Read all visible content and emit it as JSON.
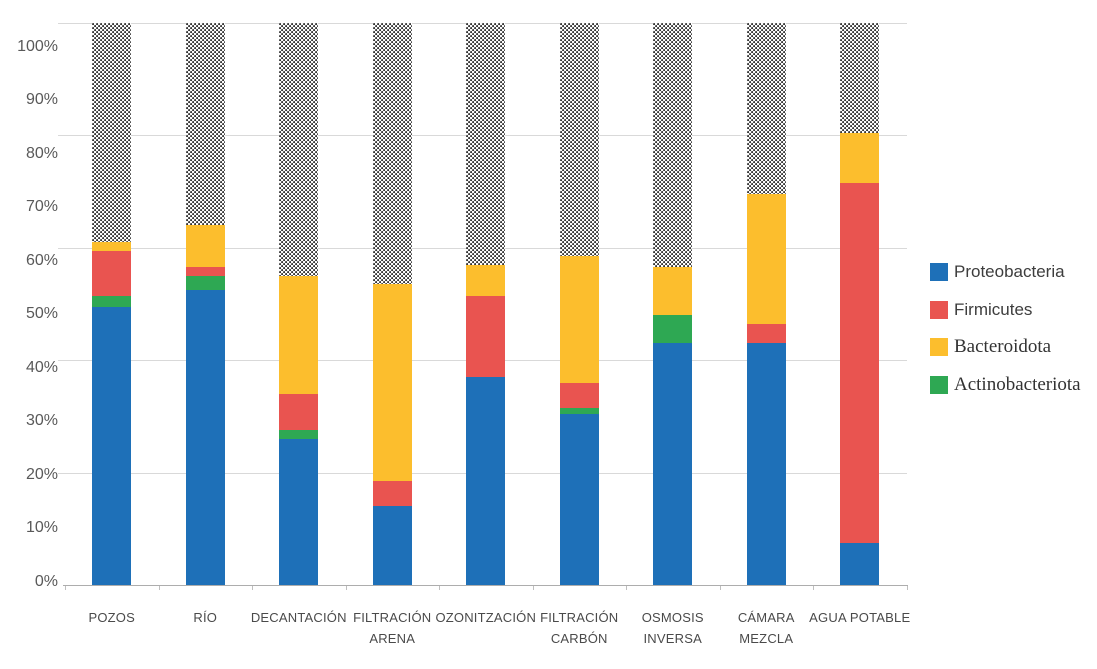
{
  "chart_data": {
    "type": "bar",
    "stacked": true,
    "title": "",
    "value_unit": "%",
    "categories": [
      "POZOS",
      "RÍO",
      "DECANTACIÓN",
      "FILTRACIÓN ARENA",
      "OZONITZACIÓN",
      "FILTRACIÓN CARBÓN",
      "OSMOSIS INVERSA",
      "CÁMARA MEZCLA",
      "AGUA POTABLE"
    ],
    "category_label_lines": [
      [
        "POZOS"
      ],
      [
        "RÍO"
      ],
      [
        "DECANTACIÓN"
      ],
      [
        "FILTRACIÓN",
        "ARENA"
      ],
      [
        "OZONITZACIÓN"
      ],
      [
        "FILTRACIÓN",
        "CARBÓN"
      ],
      [
        "OSMOSIS",
        "INVERSA"
      ],
      [
        "CÁMARA",
        "MEZCLA"
      ],
      [
        "AGUA POTABLE"
      ]
    ],
    "stack_order": "bottom to top",
    "series": [
      {
        "name": "Proteobacteria",
        "color": "#1E70B8",
        "values": [
          49.5,
          52.5,
          26,
          14,
          37,
          30.5,
          43,
          43,
          7.5
        ]
      },
      {
        "name": "Actinobacteriota",
        "color": "#2EA853",
        "values": [
          2,
          2.5,
          1.5,
          0,
          0,
          1,
          5,
          0,
          0
        ]
      },
      {
        "name": "Firmicutes",
        "color": "#E95450",
        "values": [
          8,
          1.5,
          6.5,
          4.5,
          14.5,
          4.5,
          0,
          3.5,
          64
        ]
      },
      {
        "name": "Bacteroidota",
        "color": "#FCBE2D",
        "values": [
          1.5,
          7.5,
          21,
          35,
          5.5,
          22.5,
          8.5,
          23,
          9
        ]
      },
      {
        "name": "",
        "pattern": "dots",
        "values": [
          39,
          36,
          45,
          46.5,
          43,
          41.5,
          43.5,
          30.5,
          19.5
        ]
      }
    ],
    "legend": {
      "position": "right",
      "items": [
        {
          "label": "Proteobacteria",
          "color": "#1E70B8"
        },
        {
          "label": "Firmicutes",
          "color": "#E95450"
        },
        {
          "label": "Bacteroidota",
          "color": "#FCBE2D"
        },
        {
          "label": "Actinobacteriota",
          "color": "#2EA853"
        }
      ]
    },
    "y_axis": {
      "min": 0,
      "max": 100,
      "tick_step_percent": 10,
      "gridline_step_percent": 20,
      "tick_labels": [
        "100%",
        "90%",
        "80%",
        "70%",
        "60%",
        "50%",
        "40%",
        "30%",
        "20%",
        "10%",
        "0%"
      ]
    },
    "grid": true,
    "colors": {
      "gridline": "#d9d9d9",
      "axis_line": "#adadad",
      "tick_text": "#595959",
      "category_text": "#4a4a4a",
      "dot_pattern": "#2b2b2b"
    }
  }
}
